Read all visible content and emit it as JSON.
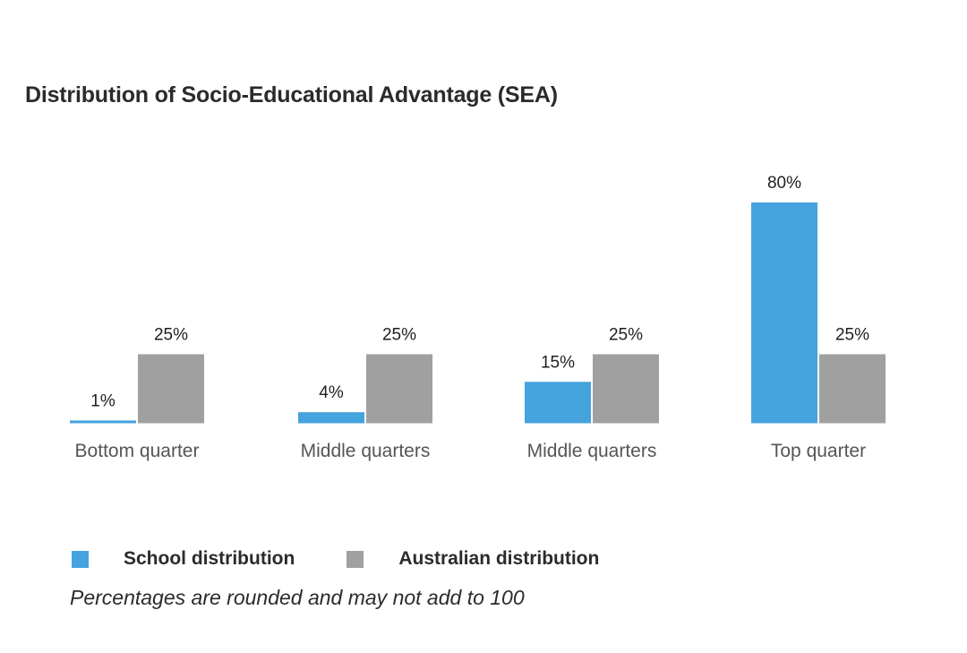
{
  "chart_data": {
    "type": "bar",
    "title": "Distribution of Socio-Educational Advantage (SEA)",
    "categories": [
      "Bottom quarter",
      "Middle quarters",
      "Middle quarters",
      "Top quarter"
    ],
    "series": [
      {
        "name": "School distribution",
        "color": "#45a3dd",
        "values": [
          1,
          4,
          15,
          80
        ],
        "labels": [
          "1%",
          "4%",
          "15%",
          "80%"
        ]
      },
      {
        "name": "Australian distribution",
        "color": "#a0a0a0",
        "values": [
          25,
          25,
          25,
          25
        ],
        "labels": [
          "25%",
          "25%",
          "25%",
          "25%"
        ]
      }
    ],
    "ylim": [
      0,
      80
    ],
    "grid": false,
    "legend_position": "bottom-left",
    "note": "Percentages are rounded and may not add to 100"
  }
}
